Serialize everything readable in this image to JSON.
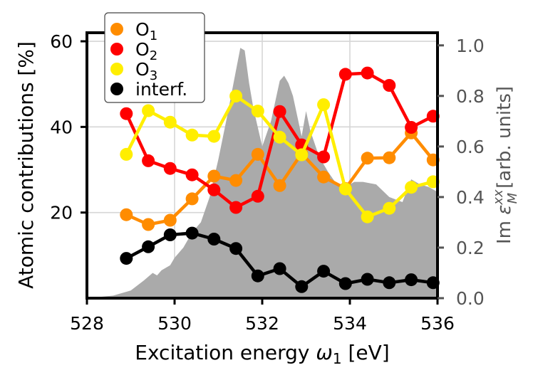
{
  "chart_data": {
    "type": "line",
    "xlabel": "Excitation energy",
    "xlabel_symbol": "ω",
    "xlabel_sub": "1",
    "xlabel_unit": "[eV]",
    "ylabel": "Atomic contributions [%]",
    "y2label_prefix": "Im",
    "y2label_symbol": "ε",
    "y2label_sup": "xx",
    "y2label_sub": "M",
    "y2label_unit": "[arb. units]",
    "xlim": [
      528,
      536
    ],
    "ylim": [
      0,
      62
    ],
    "y2lim": [
      0,
      1.05
    ],
    "x_ticks": [
      "528",
      "530",
      "532",
      "534",
      "536"
    ],
    "y_ticks": [
      "20",
      "40",
      "60"
    ],
    "y2_ticks": [
      "0.0",
      "0.2",
      "0.4",
      "0.6",
      "0.8",
      "1.0"
    ],
    "grid": true,
    "legend_position": "top-left",
    "x": [
      528.9,
      529.4,
      529.9,
      530.4,
      530.9,
      531.4,
      531.9,
      532.4,
      532.9,
      533.4,
      533.9,
      534.4,
      534.9,
      535.4,
      535.9
    ],
    "series": [
      {
        "name": "O",
        "sub": "1",
        "color": "#ff8c00",
        "values": [
          19.5,
          17.2,
          18.2,
          23.2,
          28.5,
          27.5,
          33.6,
          26.3,
          33.8,
          28.3,
          25.6,
          32.7,
          32.8,
          38.6,
          32.3
        ]
      },
      {
        "name": "O",
        "sub": "2",
        "color": "#ff0000",
        "values": [
          43.1,
          32.1,
          30.3,
          28.8,
          25.3,
          21.2,
          23.8,
          43.6,
          35.8,
          33.0,
          52.3,
          52.6,
          49.7,
          39.9,
          42.5
        ]
      },
      {
        "name": "O",
        "sub": "3",
        "color": "#ffee00",
        "values": [
          33.6,
          43.8,
          41.1,
          38.1,
          37.8,
          47.2,
          43.7,
          37.6,
          33.5,
          45.2,
          25.5,
          19.0,
          21.0,
          25.9,
          27.2
        ]
      },
      {
        "name": "interf.",
        "sub": "",
        "color": "#000000",
        "values": [
          9.3,
          12.0,
          14.8,
          15.2,
          13.8,
          11.6,
          5.2,
          6.9,
          2.7,
          6.3,
          3.4,
          4.4,
          3.6,
          4.3,
          3.6
        ]
      }
    ],
    "spectrum": {
      "name": "Im epsilon_M^xx",
      "color": "#aaaaaa",
      "x": [
        528.0,
        528.6,
        529.0,
        529.3,
        529.5,
        529.6,
        529.7,
        529.9,
        530.0,
        530.2,
        530.4,
        530.6,
        530.8,
        531.0,
        531.2,
        531.4,
        531.5,
        531.6,
        531.7,
        531.8,
        532.0,
        532.2,
        532.4,
        532.5,
        532.6,
        532.7,
        532.8,
        532.9,
        533.0,
        533.1,
        533.3,
        533.5,
        533.7,
        533.9,
        534.1,
        534.3,
        534.6,
        534.9,
        535.2,
        535.4,
        535.6,
        535.8,
        536.0
      ],
      "values": [
        0.0,
        0.01,
        0.03,
        0.07,
        0.1,
        0.09,
        0.11,
        0.13,
        0.16,
        0.2,
        0.26,
        0.3,
        0.4,
        0.55,
        0.72,
        0.9,
        0.99,
        0.98,
        0.85,
        0.75,
        0.6,
        0.7,
        0.86,
        0.88,
        0.85,
        0.8,
        0.72,
        0.64,
        0.74,
        0.66,
        0.56,
        0.5,
        0.45,
        0.44,
        0.46,
        0.46,
        0.45,
        0.4,
        0.38,
        0.47,
        0.45,
        0.44,
        0.42
      ]
    }
  }
}
